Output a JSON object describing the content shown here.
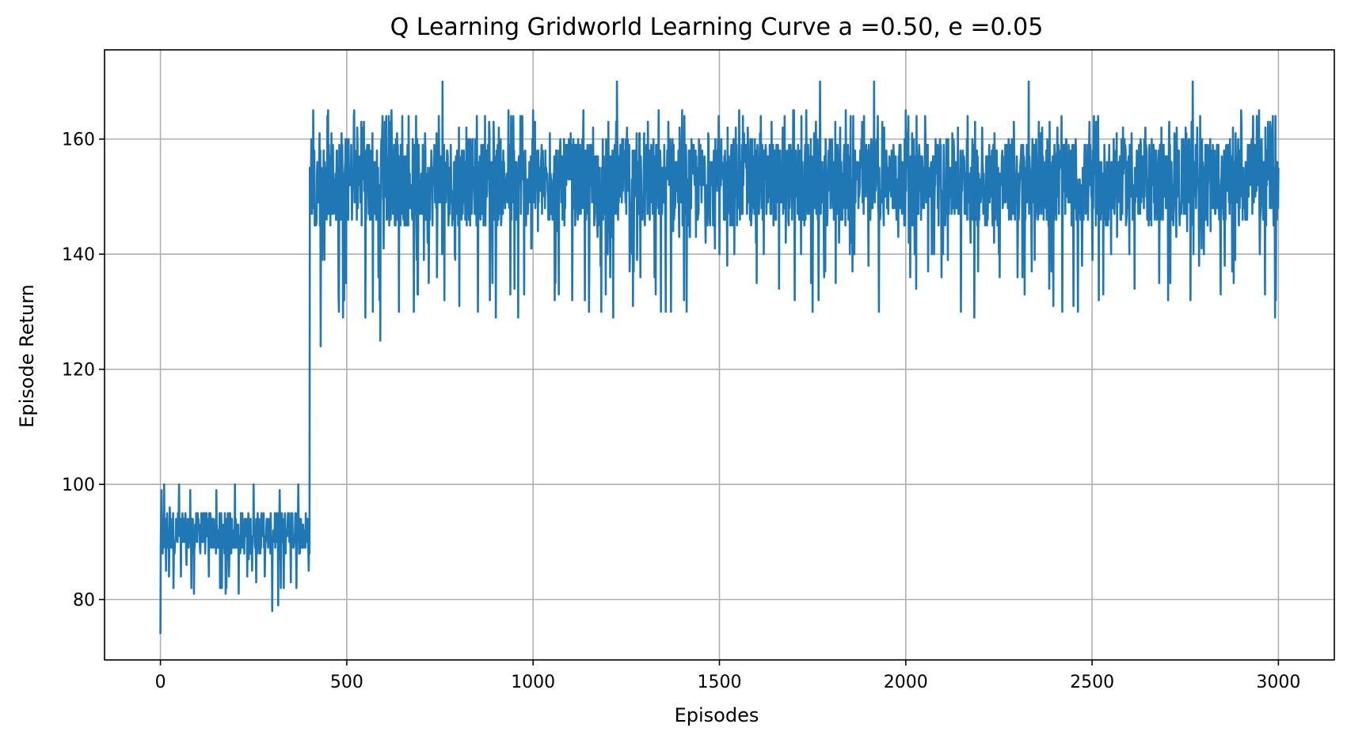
{
  "chart_data": {
    "type": "line",
    "title": "Q Learning Gridworld Learning Curve a =0.50, e =0.05",
    "xlabel": "Episodes",
    "ylabel": "Episode Return",
    "xlim": [
      -150,
      3150
    ],
    "ylim": [
      69.5,
      175.5
    ],
    "xticks": [
      0,
      500,
      1000,
      1500,
      2000,
      2500,
      3000
    ],
    "yticks": [
      80,
      100,
      120,
      140,
      160
    ],
    "grid": true,
    "legend": "none",
    "series": [
      {
        "color": "#1f77b4",
        "x_range": [
          0,
          3000
        ],
        "phases": [
          {
            "from": 0,
            "to": 400,
            "typical_low": 88,
            "typical_high": 95,
            "min": 74,
            "max": 100
          },
          {
            "from": 400,
            "to": 3000,
            "typical_low": 145,
            "typical_high": 160,
            "min": 124,
            "max": 170
          }
        ],
        "points": [
          [
            0,
            74
          ],
          [
            3,
            99
          ],
          [
            6,
            88
          ],
          [
            10,
            100
          ],
          [
            15,
            85
          ],
          [
            25,
            96
          ],
          [
            35,
            82
          ],
          [
            50,
            100
          ],
          [
            70,
            86
          ],
          [
            80,
            99
          ],
          [
            90,
            81
          ],
          [
            110,
            95
          ],
          [
            130,
            84
          ],
          [
            150,
            99
          ],
          [
            160,
            82
          ],
          [
            200,
            100
          ],
          [
            210,
            81
          ],
          [
            250,
            100
          ],
          [
            280,
            84
          ],
          [
            300,
            78
          ],
          [
            320,
            99
          ],
          [
            350,
            83
          ],
          [
            370,
            100
          ],
          [
            398,
            85
          ],
          [
            400,
            88
          ],
          [
            405,
            160
          ],
          [
            410,
            165
          ],
          [
            430,
            124
          ],
          [
            450,
            165
          ],
          [
            490,
            129
          ],
          [
            520,
            165
          ],
          [
            550,
            129
          ],
          [
            590,
            125
          ],
          [
            620,
            165
          ],
          [
            640,
            130
          ],
          [
            680,
            130
          ],
          [
            720,
            135
          ],
          [
            757,
            170
          ],
          [
            800,
            145
          ],
          [
            900,
            129
          ],
          [
            950,
            134
          ],
          [
            960,
            129
          ],
          [
            1000,
            165
          ],
          [
            1060,
            135
          ],
          [
            1150,
            130
          ],
          [
            1200,
            140
          ],
          [
            1225,
            170
          ],
          [
            1300,
            145
          ],
          [
            1370,
            130
          ],
          [
            1400,
            165
          ],
          [
            1500,
            140
          ],
          [
            1600,
            135
          ],
          [
            1660,
            134
          ],
          [
            1700,
            165
          ],
          [
            1750,
            130
          ],
          [
            1770,
            170
          ],
          [
            1850,
            140
          ],
          [
            1915,
            170
          ],
          [
            2000,
            165
          ],
          [
            2100,
            140
          ],
          [
            2200,
            150
          ],
          [
            2250,
            140
          ],
          [
            2330,
            170
          ],
          [
            2385,
            134
          ],
          [
            2420,
            130
          ],
          [
            2500,
            145
          ],
          [
            2600,
            140
          ],
          [
            2710,
            135
          ],
          [
            2770,
            170
          ],
          [
            2800,
            140
          ],
          [
            2880,
            135
          ],
          [
            2900,
            165
          ],
          [
            2950,
            140
          ],
          [
            3000,
            155
          ]
        ]
      }
    ]
  }
}
